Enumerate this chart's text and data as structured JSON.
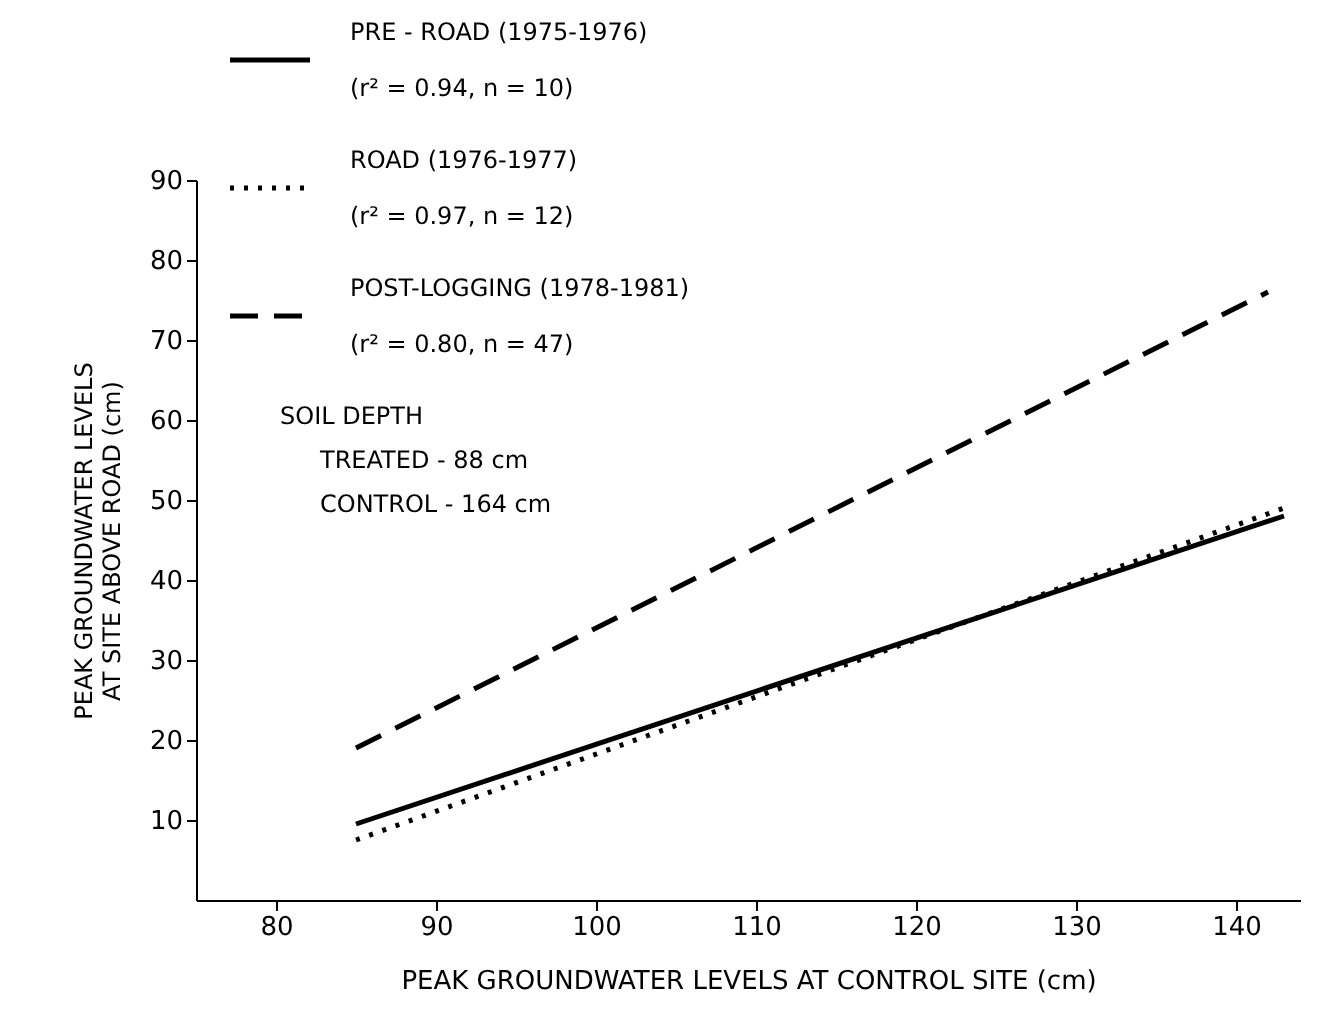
{
  "chart_data": {
    "type": "line",
    "xlabel": "PEAK GROUNDWATER LEVELS AT CONTROL SITE (cm)",
    "ylabel": "PEAK GROUNDWATER LEVELS\nAT SITE ABOVE ROAD (cm)",
    "xlim": [
      75,
      144
    ],
    "ylim": [
      0,
      90
    ],
    "xticks": [
      80,
      90,
      100,
      110,
      120,
      130,
      140
    ],
    "yticks": [
      10,
      20,
      30,
      40,
      50,
      60,
      70,
      80,
      90
    ],
    "grid": false,
    "legend": "top left",
    "marker": "none",
    "series": [
      {
        "name": "PRE - ROAD (1975-1976)\n(r² = 0.94, n = 10)",
        "color": "#000000",
        "line_style": "solid",
        "x": [
          85,
          143
        ],
        "values": [
          9.5,
          48
        ]
      },
      {
        "name": "ROAD (1976-1977)\n(r² = 0.97, n = 12)",
        "color": "#000000",
        "line_style": "dotted",
        "x": [
          85,
          143
        ],
        "values": [
          7.5,
          49
        ]
      },
      {
        "name": "POST-LOGGING (1978-1981)\n(r² = 0.80, n = 47)",
        "color": "#000000",
        "line_style": "dashed",
        "x": [
          85,
          142
        ],
        "values": [
          19,
          76
        ]
      }
    ],
    "annotations": [
      "SOIL DEPTH",
      "TREATED - 88 cm",
      "CONTROL - 164 cm"
    ]
  }
}
